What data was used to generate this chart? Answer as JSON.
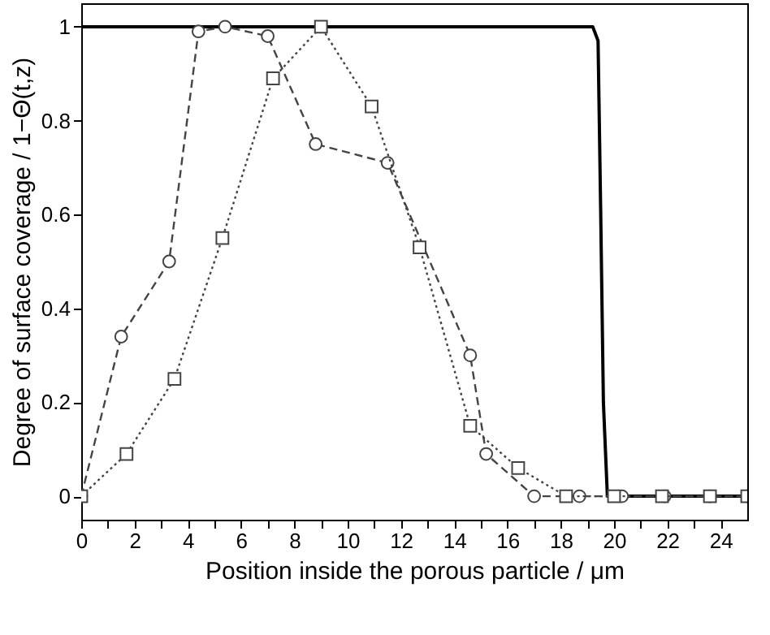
{
  "chart_data": {
    "type": "line",
    "xlabel": "Position inside the porous particle / μm",
    "ylabel": "Degree of surface coverage / 1−Θ(t,z)",
    "xlim": [
      0,
      25
    ],
    "ylim": [
      -0.05,
      1.05
    ],
    "xticks": [
      0,
      {
        "value": 1,
        "label": null
      },
      2,
      {
        "value": 3,
        "label": null
      },
      4,
      {
        "value": 5,
        "label": null
      },
      6,
      {
        "value": 7,
        "label": null
      },
      8,
      {
        "value": 9,
        "label": null
      },
      10,
      {
        "value": 11,
        "label": null
      },
      12,
      {
        "value": 13,
        "label": null
      },
      14,
      {
        "value": 15,
        "label": null
      },
      16,
      {
        "value": 17,
        "label": null
      },
      18,
      {
        "value": 19,
        "label": null
      },
      20,
      {
        "value": 21,
        "label": null
      },
      22,
      {
        "value": 23,
        "label": null
      },
      24
    ],
    "yticks": [
      0,
      0.2,
      0.4,
      0.6,
      0.8,
      1
    ],
    "grid": false,
    "series": [
      {
        "color": "#000000",
        "marker": "none",
        "line_style": "solid",
        "x": [
          0,
          19.2,
          19.4,
          19.5,
          19.6,
          19.75,
          25
        ],
        "values": [
          1,
          1,
          0.97,
          0.6,
          0.2,
          0,
          0
        ]
      },
      {
        "color": "#444444",
        "marker": "circle",
        "line_style": "dashed",
        "x": [
          0,
          1.5,
          3.3,
          4.4,
          5.4,
          7.0,
          8.8,
          11.5,
          14.6,
          15.2,
          17.0,
          18.7,
          20.3,
          21.9,
          23.6,
          25
        ],
        "values": [
          0,
          0.34,
          0.5,
          0.99,
          1.0,
          0.98,
          0.75,
          0.71,
          0.3,
          0.09,
          0,
          0,
          0,
          0,
          0,
          0
        ]
      },
      {
        "color": "#444444",
        "marker": "square",
        "line_style": "dotted",
        "x": [
          0,
          1.7,
          3.5,
          5.3,
          7.2,
          9.0,
          10.9,
          12.7,
          14.6,
          16.4,
          18.2,
          20.0,
          21.8,
          23.6,
          25
        ],
        "values": [
          0,
          0.09,
          0.25,
          0.55,
          0.89,
          1.0,
          0.83,
          0.53,
          0.15,
          0.06,
          0,
          0,
          0,
          0,
          0
        ]
      }
    ]
  }
}
